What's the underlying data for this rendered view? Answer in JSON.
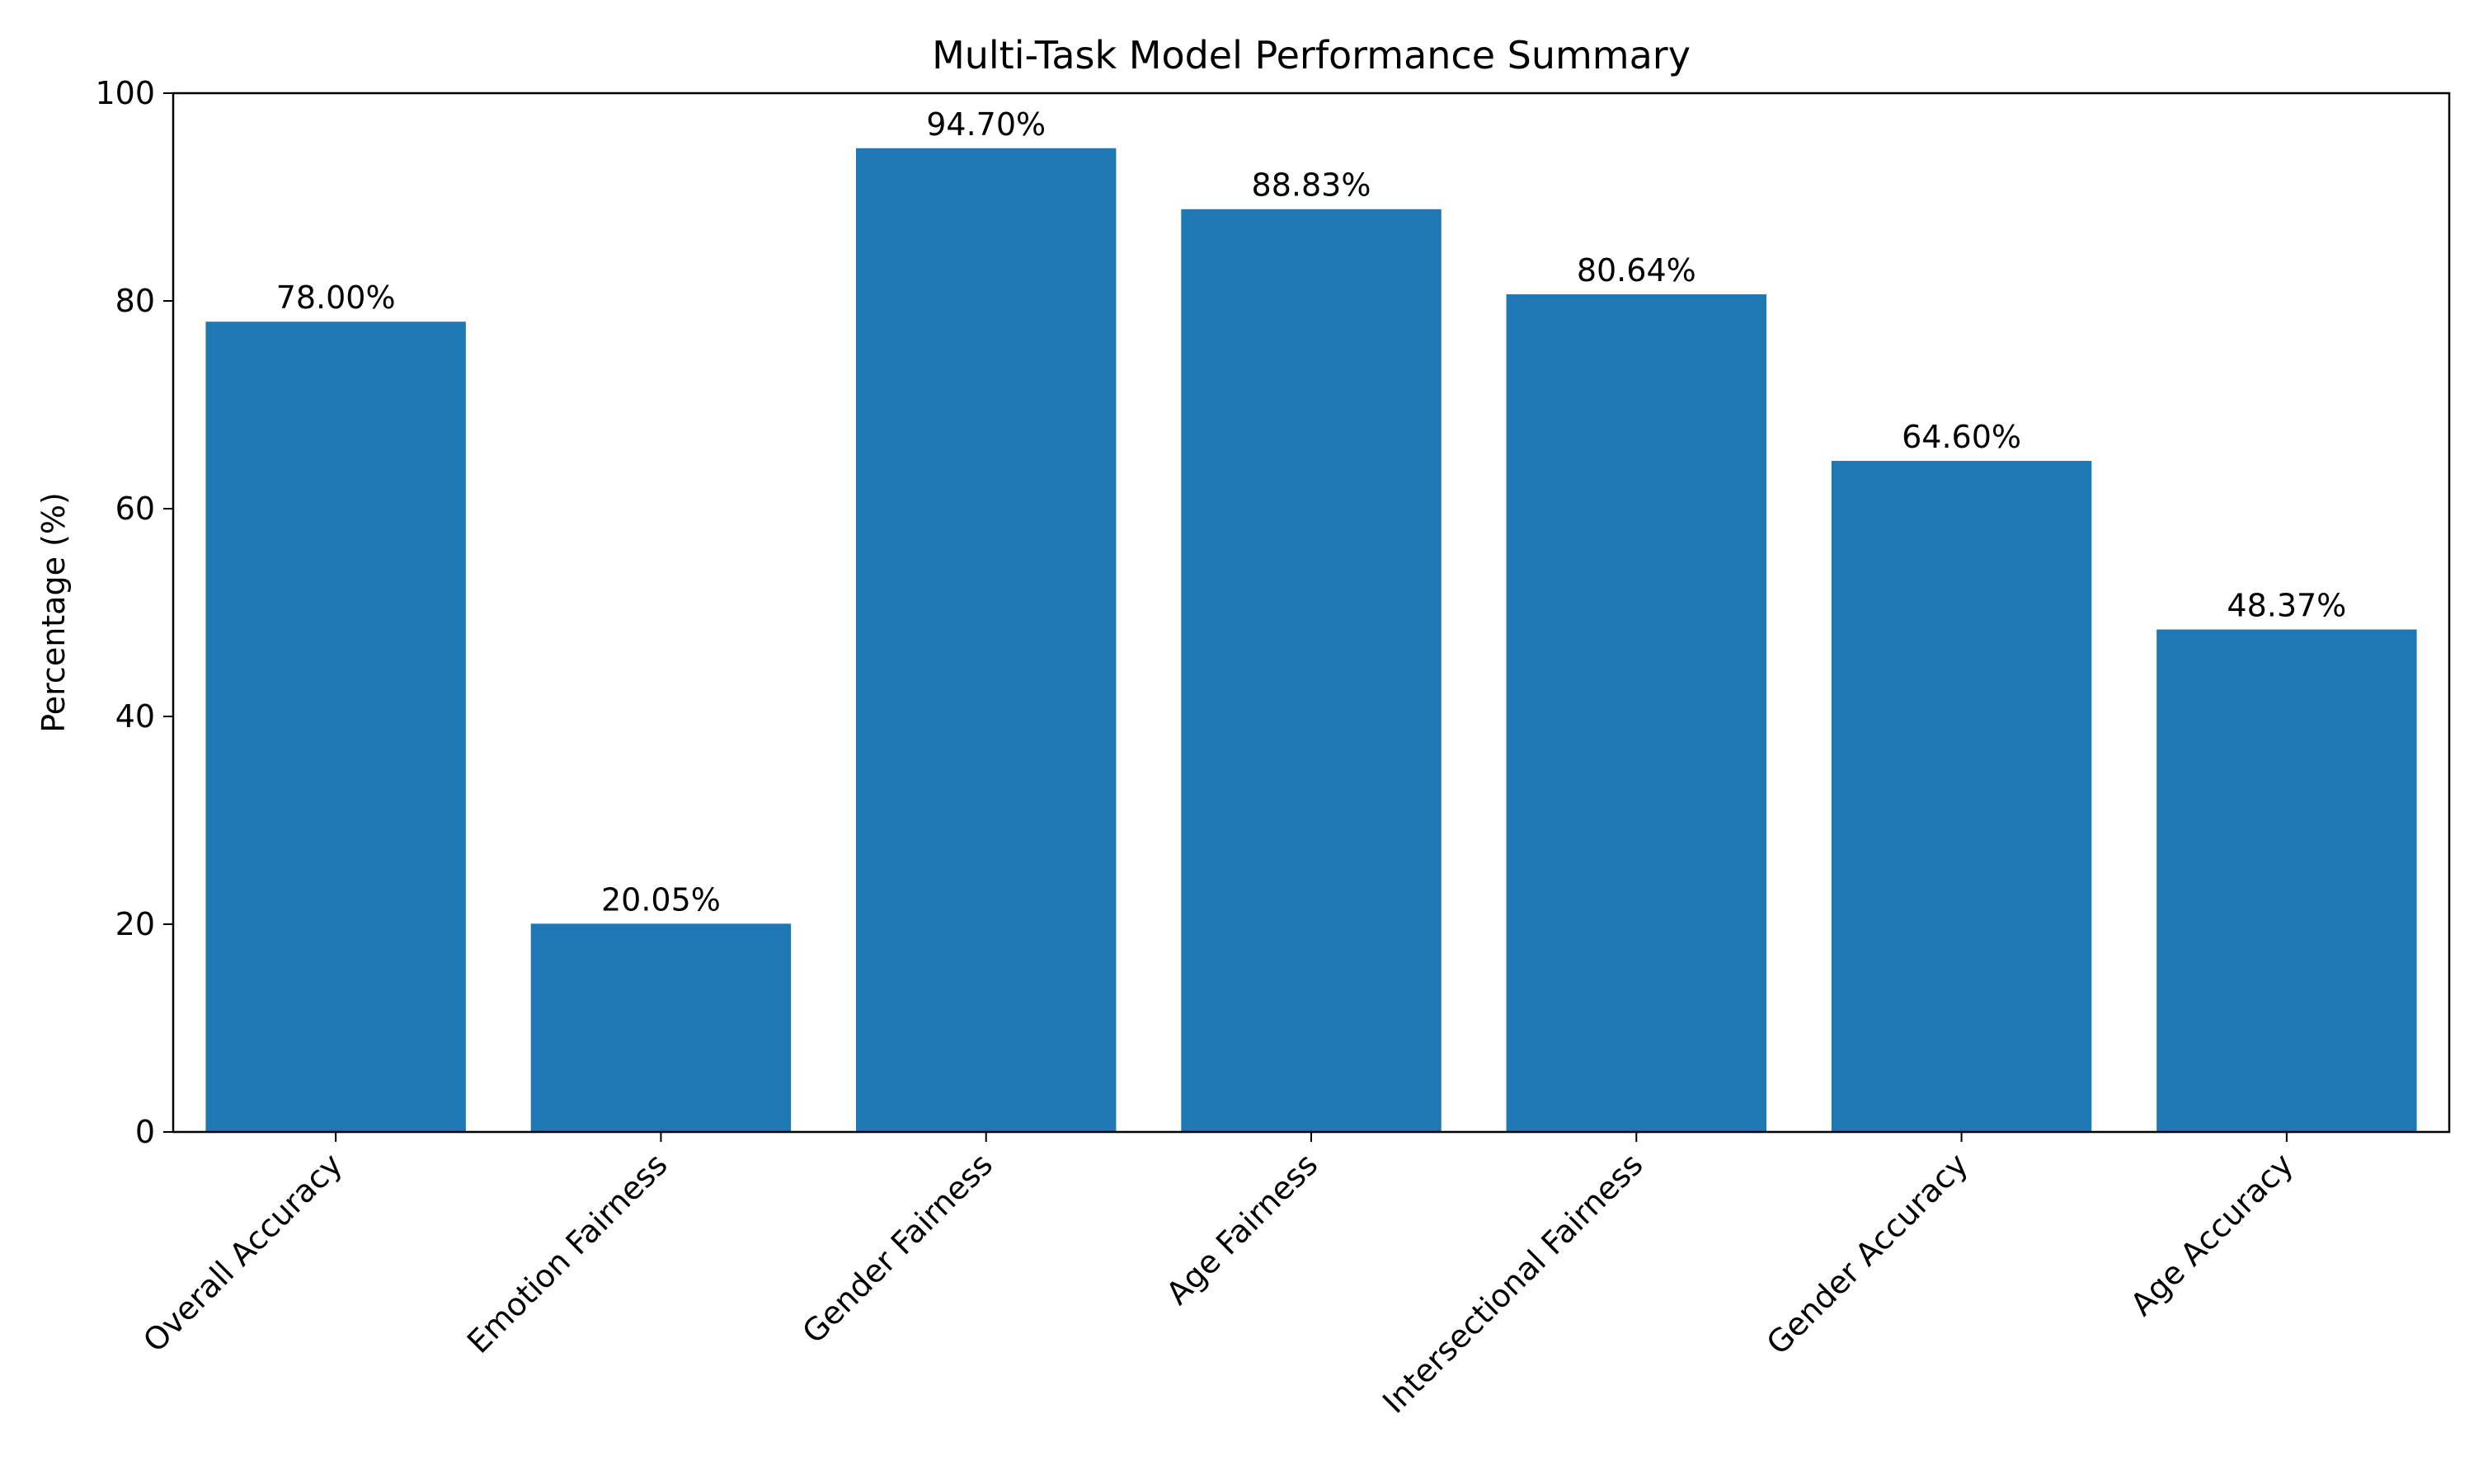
{
  "chart_data": {
    "type": "bar",
    "title": "Multi-Task Model Performance Summary",
    "xlabel": "",
    "ylabel": "Percentage (%)",
    "ylim": [
      0,
      100
    ],
    "yticks": [
      0,
      20,
      40,
      60,
      80,
      100
    ],
    "categories": [
      "Overall Accuracy",
      "Emotion Fairness",
      "Gender Fairness",
      "Age Fairness",
      "Intersectional Fairness",
      "Gender Accuracy",
      "Age Accuracy"
    ],
    "values": [
      78.0,
      20.05,
      94.7,
      88.83,
      80.64,
      64.6,
      48.37
    ],
    "value_labels": [
      "78.00%",
      "20.05%",
      "94.70%",
      "88.83%",
      "80.64%",
      "64.60%",
      "48.37%"
    ],
    "bar_color": "#1f77b4",
    "grid": false,
    "legend": "none"
  }
}
